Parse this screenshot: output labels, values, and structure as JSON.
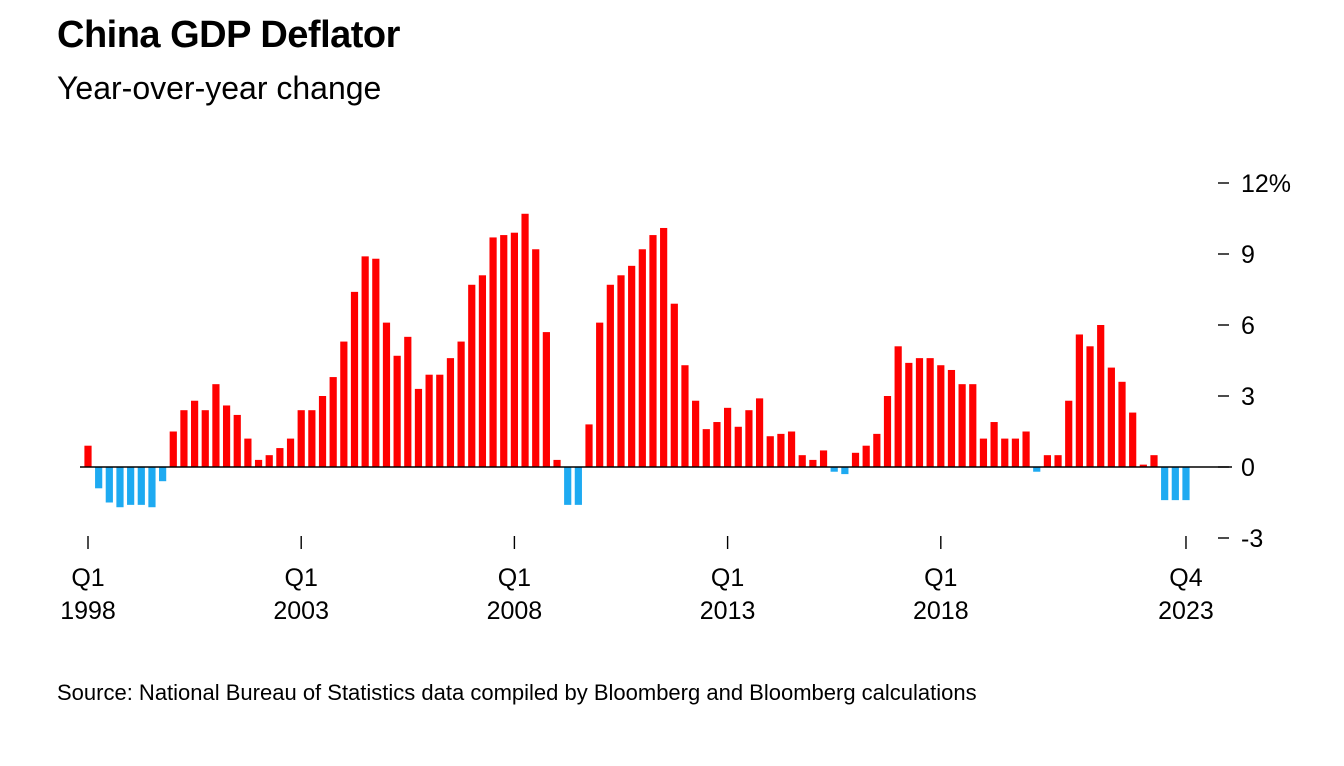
{
  "title": "China GDP Deflator",
  "subtitle": "Year-over-year change",
  "source": "Source: National Bureau of Statistics data compiled by Bloomberg and Bloomberg calculations",
  "colors": {
    "positive": "#ff0000",
    "negative": "#1eaaf1",
    "axis": "#000000"
  },
  "chart_data": {
    "type": "bar",
    "x_start": "1998 Q1",
    "x_end": "2023 Q4",
    "ylim": [
      -3,
      12
    ],
    "y_ticks": [
      {
        "value": 12,
        "label": "12%"
      },
      {
        "value": 9,
        "label": "9"
      },
      {
        "value": 6,
        "label": "6"
      },
      {
        "value": 3,
        "label": "3"
      },
      {
        "value": 0,
        "label": "0"
      },
      {
        "value": -3,
        "label": "-3"
      }
    ],
    "x_ticks": [
      {
        "index": 0,
        "line1": "Q1",
        "line2": "1998"
      },
      {
        "index": 20,
        "line1": "Q1",
        "line2": "2003"
      },
      {
        "index": 40,
        "line1": "Q1",
        "line2": "2008"
      },
      {
        "index": 60,
        "line1": "Q1",
        "line2": "2013"
      },
      {
        "index": 80,
        "line1": "Q1",
        "line2": "2018"
      },
      {
        "index": 103,
        "line1": "Q4",
        "line2": "2023"
      }
    ],
    "values": [
      0.9,
      -0.9,
      -1.5,
      -1.7,
      -1.6,
      -1.6,
      -1.7,
      -0.6,
      1.5,
      2.4,
      2.8,
      2.4,
      3.5,
      2.6,
      2.2,
      1.2,
      0.3,
      0.5,
      0.8,
      1.2,
      2.4,
      2.4,
      3.0,
      3.8,
      5.3,
      7.4,
      8.9,
      8.8,
      6.1,
      4.7,
      5.5,
      3.3,
      3.9,
      3.9,
      4.6,
      5.3,
      7.7,
      8.1,
      9.7,
      9.8,
      9.9,
      10.7,
      9.2,
      5.7,
      0.3,
      -1.6,
      -1.6,
      1.8,
      6.1,
      7.7,
      8.1,
      8.5,
      9.2,
      9.8,
      10.1,
      6.9,
      4.3,
      2.8,
      1.6,
      1.9,
      2.5,
      1.7,
      2.4,
      2.9,
      1.3,
      1.4,
      1.5,
      0.5,
      0.3,
      0.7,
      -0.2,
      -0.3,
      0.6,
      0.9,
      1.4,
      3.0,
      5.1,
      4.4,
      4.6,
      4.6,
      4.3,
      4.1,
      3.5,
      3.5,
      1.2,
      1.9,
      1.2,
      1.2,
      1.5,
      -0.2,
      0.5,
      0.5,
      2.8,
      5.6,
      5.1,
      6.0,
      4.2,
      3.6,
      2.3,
      0.1,
      0.5,
      -1.4,
      -1.4,
      -1.4
    ]
  }
}
